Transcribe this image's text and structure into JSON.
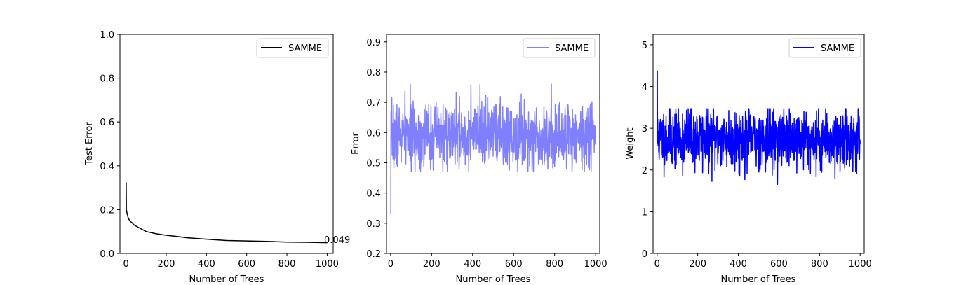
{
  "colors": {
    "black": "#000000",
    "light_blue": "#8080ff",
    "blue": "#0000ff"
  },
  "chart_data": [
    {
      "type": "line",
      "xlabel": "Number of Trees",
      "ylabel": "Test Error",
      "xlim": [
        -30,
        1030
      ],
      "ylim": [
        0.0,
        1.0
      ],
      "xticks": [
        0,
        200,
        400,
        600,
        800,
        1000
      ],
      "yticks": [
        0.0,
        0.2,
        0.4,
        0.6,
        0.8,
        1.0
      ],
      "xtick_labels": [
        "0",
        "200",
        "400",
        "600",
        "800",
        "1000"
      ],
      "ytick_labels": [
        "0.0",
        "0.2",
        "0.4",
        "0.6",
        "0.8",
        "1.0"
      ],
      "legend_position": "upper right",
      "annotation": {
        "x": 1000,
        "y": 0.049,
        "text": "0.049"
      },
      "series": [
        {
          "name": "SAMME",
          "color": "#000000",
          "x": [
            1,
            2,
            4,
            6,
            8,
            10,
            15,
            20,
            30,
            40,
            50,
            70,
            100,
            150,
            200,
            250,
            300,
            400,
            500,
            600,
            700,
            800,
            900,
            1000
          ],
          "y": [
            0.325,
            0.2,
            0.19,
            0.18,
            0.175,
            0.165,
            0.155,
            0.148,
            0.14,
            0.13,
            0.125,
            0.115,
            0.1,
            0.09,
            0.083,
            0.078,
            0.072,
            0.065,
            0.059,
            0.057,
            0.055,
            0.052,
            0.051,
            0.049
          ]
        }
      ]
    },
    {
      "type": "line",
      "xlabel": "Number of Trees",
      "ylabel": "Error",
      "xlim": [
        -20,
        1020
      ],
      "ylim": [
        0.2,
        0.925
      ],
      "xticks": [
        0,
        200,
        400,
        600,
        800,
        1000
      ],
      "yticks": [
        0.2,
        0.3,
        0.4,
        0.5,
        0.6,
        0.7,
        0.8,
        0.9
      ],
      "xtick_labels": [
        "0",
        "200",
        "400",
        "600",
        "800",
        "1000"
      ],
      "ytick_labels": [
        "0.2",
        "0.3",
        "0.4",
        "0.5",
        "0.6",
        "0.7",
        "0.8",
        "0.9"
      ],
      "legend_position": "upper right",
      "series": [
        {
          "name": "SAMME",
          "color": "#8080ff",
          "noisy": {
            "start_x": 1,
            "start_y": 0.33,
            "end_x": 1000,
            "center": 0.59,
            "low": 0.47,
            "high": 0.77,
            "seed": 7
          }
        }
      ]
    },
    {
      "type": "line",
      "xlabel": "Number of Trees",
      "ylabel": "Weight",
      "xlim": [
        -20,
        1020
      ],
      "ylim": [
        0.0,
        5.25
      ],
      "xticks": [
        0,
        200,
        400,
        600,
        800,
        1000
      ],
      "yticks": [
        0,
        1,
        2,
        3,
        4,
        5
      ],
      "xtick_labels": [
        "0",
        "200",
        "400",
        "600",
        "800",
        "1000"
      ],
      "ytick_labels": [
        "0",
        "1",
        "2",
        "3",
        "4",
        "5"
      ],
      "legend_position": "upper right",
      "series": [
        {
          "name": "SAMME",
          "color": "#0000ff",
          "noisy": {
            "start_x": 1,
            "start_y": 4.38,
            "end_x": 1000,
            "center": 2.75,
            "low": 1.47,
            "high": 3.47,
            "seed": 11
          }
        }
      ]
    }
  ]
}
